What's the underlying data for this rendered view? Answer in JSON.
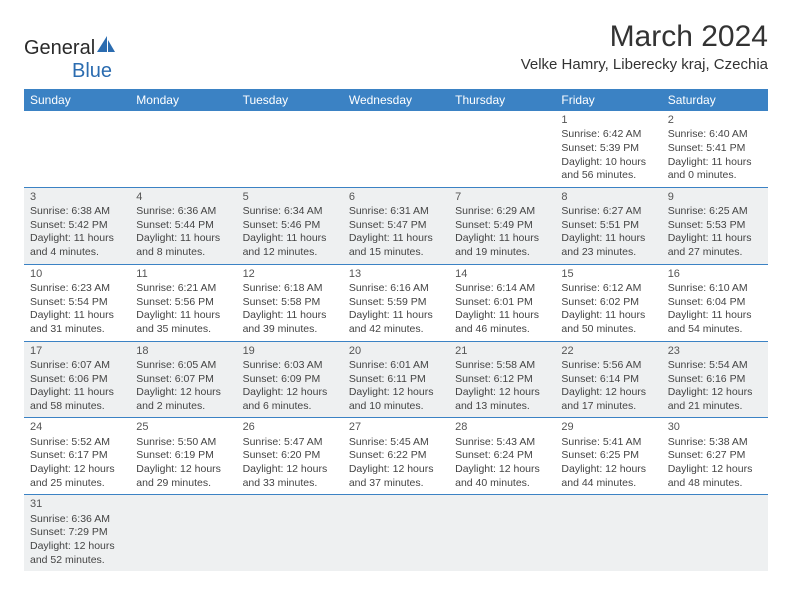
{
  "logo": {
    "brand_dark": "General",
    "brand_blue": "Blue"
  },
  "header": {
    "title": "March 2024",
    "location": "Velke Hamry, Liberecky kraj, Czechia"
  },
  "colors": {
    "header_bg": "#3b82c4",
    "header_text": "#ffffff",
    "row_alt_bg": "#eef0f1",
    "row_border": "#3b82c4",
    "text_color": "#444444",
    "logo_blue": "#2b6cb0"
  },
  "weekdays": [
    "Sunday",
    "Monday",
    "Tuesday",
    "Wednesday",
    "Thursday",
    "Friday",
    "Saturday"
  ],
  "weeks": [
    [
      null,
      null,
      null,
      null,
      null,
      {
        "day": "1",
        "sunrise": "Sunrise: 6:42 AM",
        "sunset": "Sunset: 5:39 PM",
        "daylight": "Daylight: 10 hours and 56 minutes."
      },
      {
        "day": "2",
        "sunrise": "Sunrise: 6:40 AM",
        "sunset": "Sunset: 5:41 PM",
        "daylight": "Daylight: 11 hours and 0 minutes."
      }
    ],
    [
      {
        "day": "3",
        "sunrise": "Sunrise: 6:38 AM",
        "sunset": "Sunset: 5:42 PM",
        "daylight": "Daylight: 11 hours and 4 minutes."
      },
      {
        "day": "4",
        "sunrise": "Sunrise: 6:36 AM",
        "sunset": "Sunset: 5:44 PM",
        "daylight": "Daylight: 11 hours and 8 minutes."
      },
      {
        "day": "5",
        "sunrise": "Sunrise: 6:34 AM",
        "sunset": "Sunset: 5:46 PM",
        "daylight": "Daylight: 11 hours and 12 minutes."
      },
      {
        "day": "6",
        "sunrise": "Sunrise: 6:31 AM",
        "sunset": "Sunset: 5:47 PM",
        "daylight": "Daylight: 11 hours and 15 minutes."
      },
      {
        "day": "7",
        "sunrise": "Sunrise: 6:29 AM",
        "sunset": "Sunset: 5:49 PM",
        "daylight": "Daylight: 11 hours and 19 minutes."
      },
      {
        "day": "8",
        "sunrise": "Sunrise: 6:27 AM",
        "sunset": "Sunset: 5:51 PM",
        "daylight": "Daylight: 11 hours and 23 minutes."
      },
      {
        "day": "9",
        "sunrise": "Sunrise: 6:25 AM",
        "sunset": "Sunset: 5:53 PM",
        "daylight": "Daylight: 11 hours and 27 minutes."
      }
    ],
    [
      {
        "day": "10",
        "sunrise": "Sunrise: 6:23 AM",
        "sunset": "Sunset: 5:54 PM",
        "daylight": "Daylight: 11 hours and 31 minutes."
      },
      {
        "day": "11",
        "sunrise": "Sunrise: 6:21 AM",
        "sunset": "Sunset: 5:56 PM",
        "daylight": "Daylight: 11 hours and 35 minutes."
      },
      {
        "day": "12",
        "sunrise": "Sunrise: 6:18 AM",
        "sunset": "Sunset: 5:58 PM",
        "daylight": "Daylight: 11 hours and 39 minutes."
      },
      {
        "day": "13",
        "sunrise": "Sunrise: 6:16 AM",
        "sunset": "Sunset: 5:59 PM",
        "daylight": "Daylight: 11 hours and 42 minutes."
      },
      {
        "day": "14",
        "sunrise": "Sunrise: 6:14 AM",
        "sunset": "Sunset: 6:01 PM",
        "daylight": "Daylight: 11 hours and 46 minutes."
      },
      {
        "day": "15",
        "sunrise": "Sunrise: 6:12 AM",
        "sunset": "Sunset: 6:02 PM",
        "daylight": "Daylight: 11 hours and 50 minutes."
      },
      {
        "day": "16",
        "sunrise": "Sunrise: 6:10 AM",
        "sunset": "Sunset: 6:04 PM",
        "daylight": "Daylight: 11 hours and 54 minutes."
      }
    ],
    [
      {
        "day": "17",
        "sunrise": "Sunrise: 6:07 AM",
        "sunset": "Sunset: 6:06 PM",
        "daylight": "Daylight: 11 hours and 58 minutes."
      },
      {
        "day": "18",
        "sunrise": "Sunrise: 6:05 AM",
        "sunset": "Sunset: 6:07 PM",
        "daylight": "Daylight: 12 hours and 2 minutes."
      },
      {
        "day": "19",
        "sunrise": "Sunrise: 6:03 AM",
        "sunset": "Sunset: 6:09 PM",
        "daylight": "Daylight: 12 hours and 6 minutes."
      },
      {
        "day": "20",
        "sunrise": "Sunrise: 6:01 AM",
        "sunset": "Sunset: 6:11 PM",
        "daylight": "Daylight: 12 hours and 10 minutes."
      },
      {
        "day": "21",
        "sunrise": "Sunrise: 5:58 AM",
        "sunset": "Sunset: 6:12 PM",
        "daylight": "Daylight: 12 hours and 13 minutes."
      },
      {
        "day": "22",
        "sunrise": "Sunrise: 5:56 AM",
        "sunset": "Sunset: 6:14 PM",
        "daylight": "Daylight: 12 hours and 17 minutes."
      },
      {
        "day": "23",
        "sunrise": "Sunrise: 5:54 AM",
        "sunset": "Sunset: 6:16 PM",
        "daylight": "Daylight: 12 hours and 21 minutes."
      }
    ],
    [
      {
        "day": "24",
        "sunrise": "Sunrise: 5:52 AM",
        "sunset": "Sunset: 6:17 PM",
        "daylight": "Daylight: 12 hours and 25 minutes."
      },
      {
        "day": "25",
        "sunrise": "Sunrise: 5:50 AM",
        "sunset": "Sunset: 6:19 PM",
        "daylight": "Daylight: 12 hours and 29 minutes."
      },
      {
        "day": "26",
        "sunrise": "Sunrise: 5:47 AM",
        "sunset": "Sunset: 6:20 PM",
        "daylight": "Daylight: 12 hours and 33 minutes."
      },
      {
        "day": "27",
        "sunrise": "Sunrise: 5:45 AM",
        "sunset": "Sunset: 6:22 PM",
        "daylight": "Daylight: 12 hours and 37 minutes."
      },
      {
        "day": "28",
        "sunrise": "Sunrise: 5:43 AM",
        "sunset": "Sunset: 6:24 PM",
        "daylight": "Daylight: 12 hours and 40 minutes."
      },
      {
        "day": "29",
        "sunrise": "Sunrise: 5:41 AM",
        "sunset": "Sunset: 6:25 PM",
        "daylight": "Daylight: 12 hours and 44 minutes."
      },
      {
        "day": "30",
        "sunrise": "Sunrise: 5:38 AM",
        "sunset": "Sunset: 6:27 PM",
        "daylight": "Daylight: 12 hours and 48 minutes."
      }
    ],
    [
      {
        "day": "31",
        "sunrise": "Sunrise: 6:36 AM",
        "sunset": "Sunset: 7:29 PM",
        "daylight": "Daylight: 12 hours and 52 minutes."
      },
      null,
      null,
      null,
      null,
      null,
      null
    ]
  ]
}
